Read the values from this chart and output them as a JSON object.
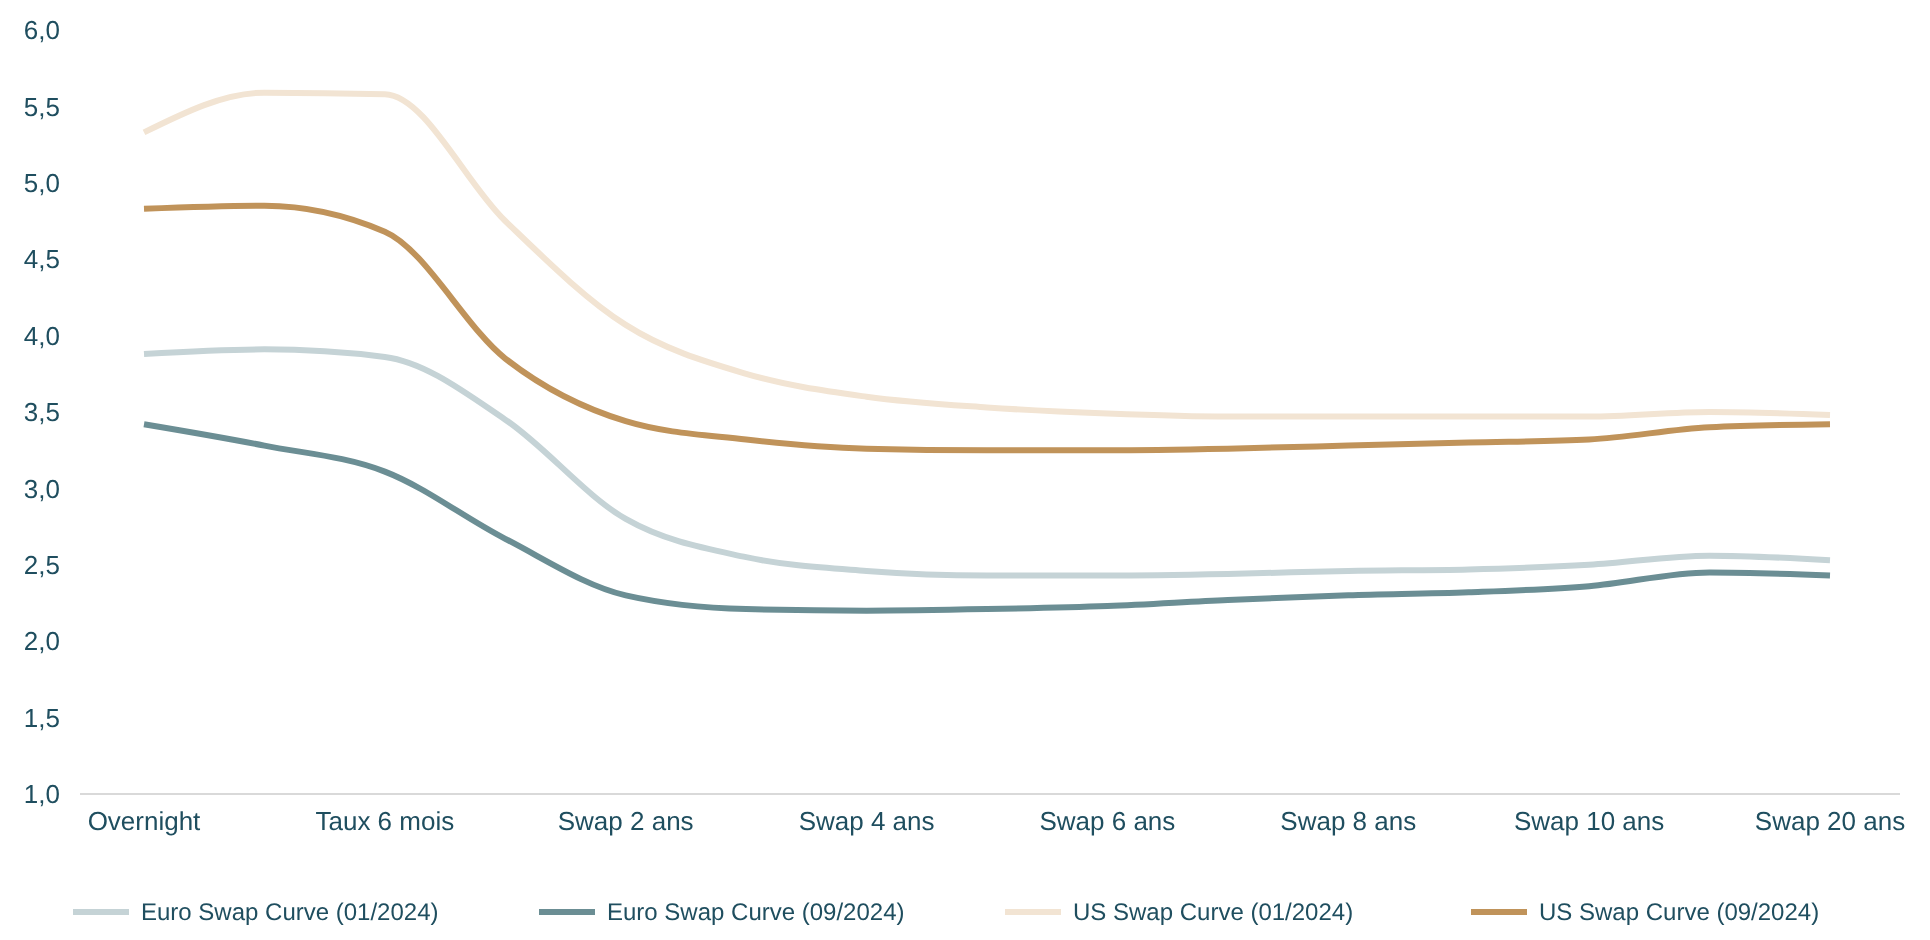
{
  "chart_data": {
    "type": "line",
    "categories": [
      "Overnight",
      null,
      "Taux 6 mois",
      null,
      "Swap 2 ans",
      null,
      "Swap 4 ans",
      null,
      "Swap 6 ans",
      null,
      "Swap 8 ans",
      null,
      "Swap 10 ans",
      null,
      "Swap 20 ans"
    ],
    "series": [
      {
        "name": "Euro Swap Curve (01/2024)",
        "color": "#c5d3d6",
        "values": [
          3.88,
          3.91,
          3.86,
          3.45,
          2.8,
          2.55,
          2.46,
          2.43,
          2.43,
          2.44,
          2.46,
          2.47,
          2.5,
          2.56,
          2.53
        ]
      },
      {
        "name": "Euro Swap Curve (09/2024)",
        "color": "#6b8e94",
        "values": [
          3.42,
          3.28,
          3.11,
          2.67,
          2.3,
          2.21,
          2.2,
          2.21,
          2.23,
          2.27,
          2.3,
          2.32,
          2.36,
          2.45,
          2.43
        ]
      },
      {
        "name": "US Swap Curve (01/2024)",
        "color": "#f2e4d3",
        "values": [
          5.33,
          5.59,
          5.58,
          4.75,
          4.07,
          3.75,
          3.6,
          3.53,
          3.49,
          3.47,
          3.47,
          3.47,
          3.47,
          3.5,
          3.48
        ]
      },
      {
        "name": "US Swap Curve (09/2024)",
        "color": "#c0935a",
        "values": [
          4.83,
          4.85,
          4.68,
          3.85,
          3.44,
          3.32,
          3.26,
          3.25,
          3.25,
          3.26,
          3.28,
          3.3,
          3.32,
          3.4,
          3.42
        ]
      }
    ],
    "ylim": [
      1,
      6
    ],
    "yticks": [
      {
        "value": 1,
        "label": "1,0"
      },
      {
        "value": 1.5,
        "label": "1,5"
      },
      {
        "value": 2,
        "label": "2,0"
      },
      {
        "value": 2.5,
        "label": "2,5"
      },
      {
        "value": 3,
        "label": "3,0"
      },
      {
        "value": 3.5,
        "label": "3,5"
      },
      {
        "value": 4,
        "label": "4,0"
      },
      {
        "value": 4.5,
        "label": "4,5"
      },
      {
        "value": 5,
        "label": "5,0"
      },
      {
        "value": 5.5,
        "label": "5,5"
      },
      {
        "value": 6,
        "label": "6,0"
      }
    ],
    "legend": "bottom",
    "marker": "none",
    "line_style": "solid"
  }
}
